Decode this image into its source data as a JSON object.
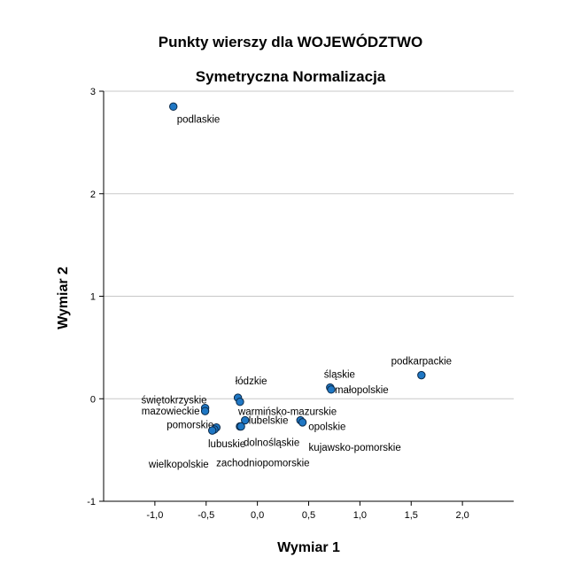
{
  "chart_data": {
    "type": "scatter",
    "title": "Punkty wierszy dla WOJEWÓDZTWO",
    "subtitle": "Symetryczna Normalizacja",
    "xlabel": "Wymiar 1",
    "ylabel": "Wymiar 2",
    "xlim": [
      -1.5,
      2.5
    ],
    "ylim": [
      -1,
      3
    ],
    "xticks": [
      "-1,0",
      "-0,5",
      "0,0",
      "0,5",
      "1,0",
      "1,5",
      "2,0"
    ],
    "xtick_values": [
      -1.0,
      -0.5,
      0.0,
      0.5,
      1.0,
      1.5,
      2.0
    ],
    "yticks": [
      "-1",
      "0",
      "1",
      "2",
      "3"
    ],
    "ytick_values": [
      -1,
      0,
      1,
      2,
      3
    ],
    "grid": "horizontal",
    "marker_color": "#1f77c4",
    "points": [
      {
        "label": "podlaskie",
        "x": -0.82,
        "y": 2.85
      },
      {
        "label": "podkarpackie",
        "x": 1.6,
        "y": 0.23
      },
      {
        "label": "śląskie",
        "x": 0.71,
        "y": 0.11
      },
      {
        "label": "małopolskie",
        "x": 0.72,
        "y": 0.09
      },
      {
        "label": "łódzkie",
        "x": -0.19,
        "y": 0.01
      },
      {
        "label": "świętokrzyskie",
        "x": -0.51,
        "y": -0.09
      },
      {
        "label": "mazowieckie",
        "x": -0.51,
        "y": -0.12
      },
      {
        "label": "warmińsko-mazurskie",
        "x": -0.17,
        "y": -0.03
      },
      {
        "label": "lubelskie",
        "x": -0.12,
        "y": -0.21
      },
      {
        "label": "opolskie",
        "x": 0.42,
        "y": -0.21
      },
      {
        "label": "dolnośląskie",
        "x": -0.17,
        "y": -0.27
      },
      {
        "label": "kujawsko-pomorskie",
        "x": 0.44,
        "y": -0.23
      },
      {
        "label": "pomorskie",
        "x": -0.4,
        "y": -0.28
      },
      {
        "label": "lubuskie",
        "x": -0.42,
        "y": -0.3
      },
      {
        "label": "wielkopolskie",
        "x": -0.44,
        "y": -0.31
      },
      {
        "label": "zachodniopomorskie",
        "x": -0.16,
        "y": -0.27
      }
    ]
  }
}
